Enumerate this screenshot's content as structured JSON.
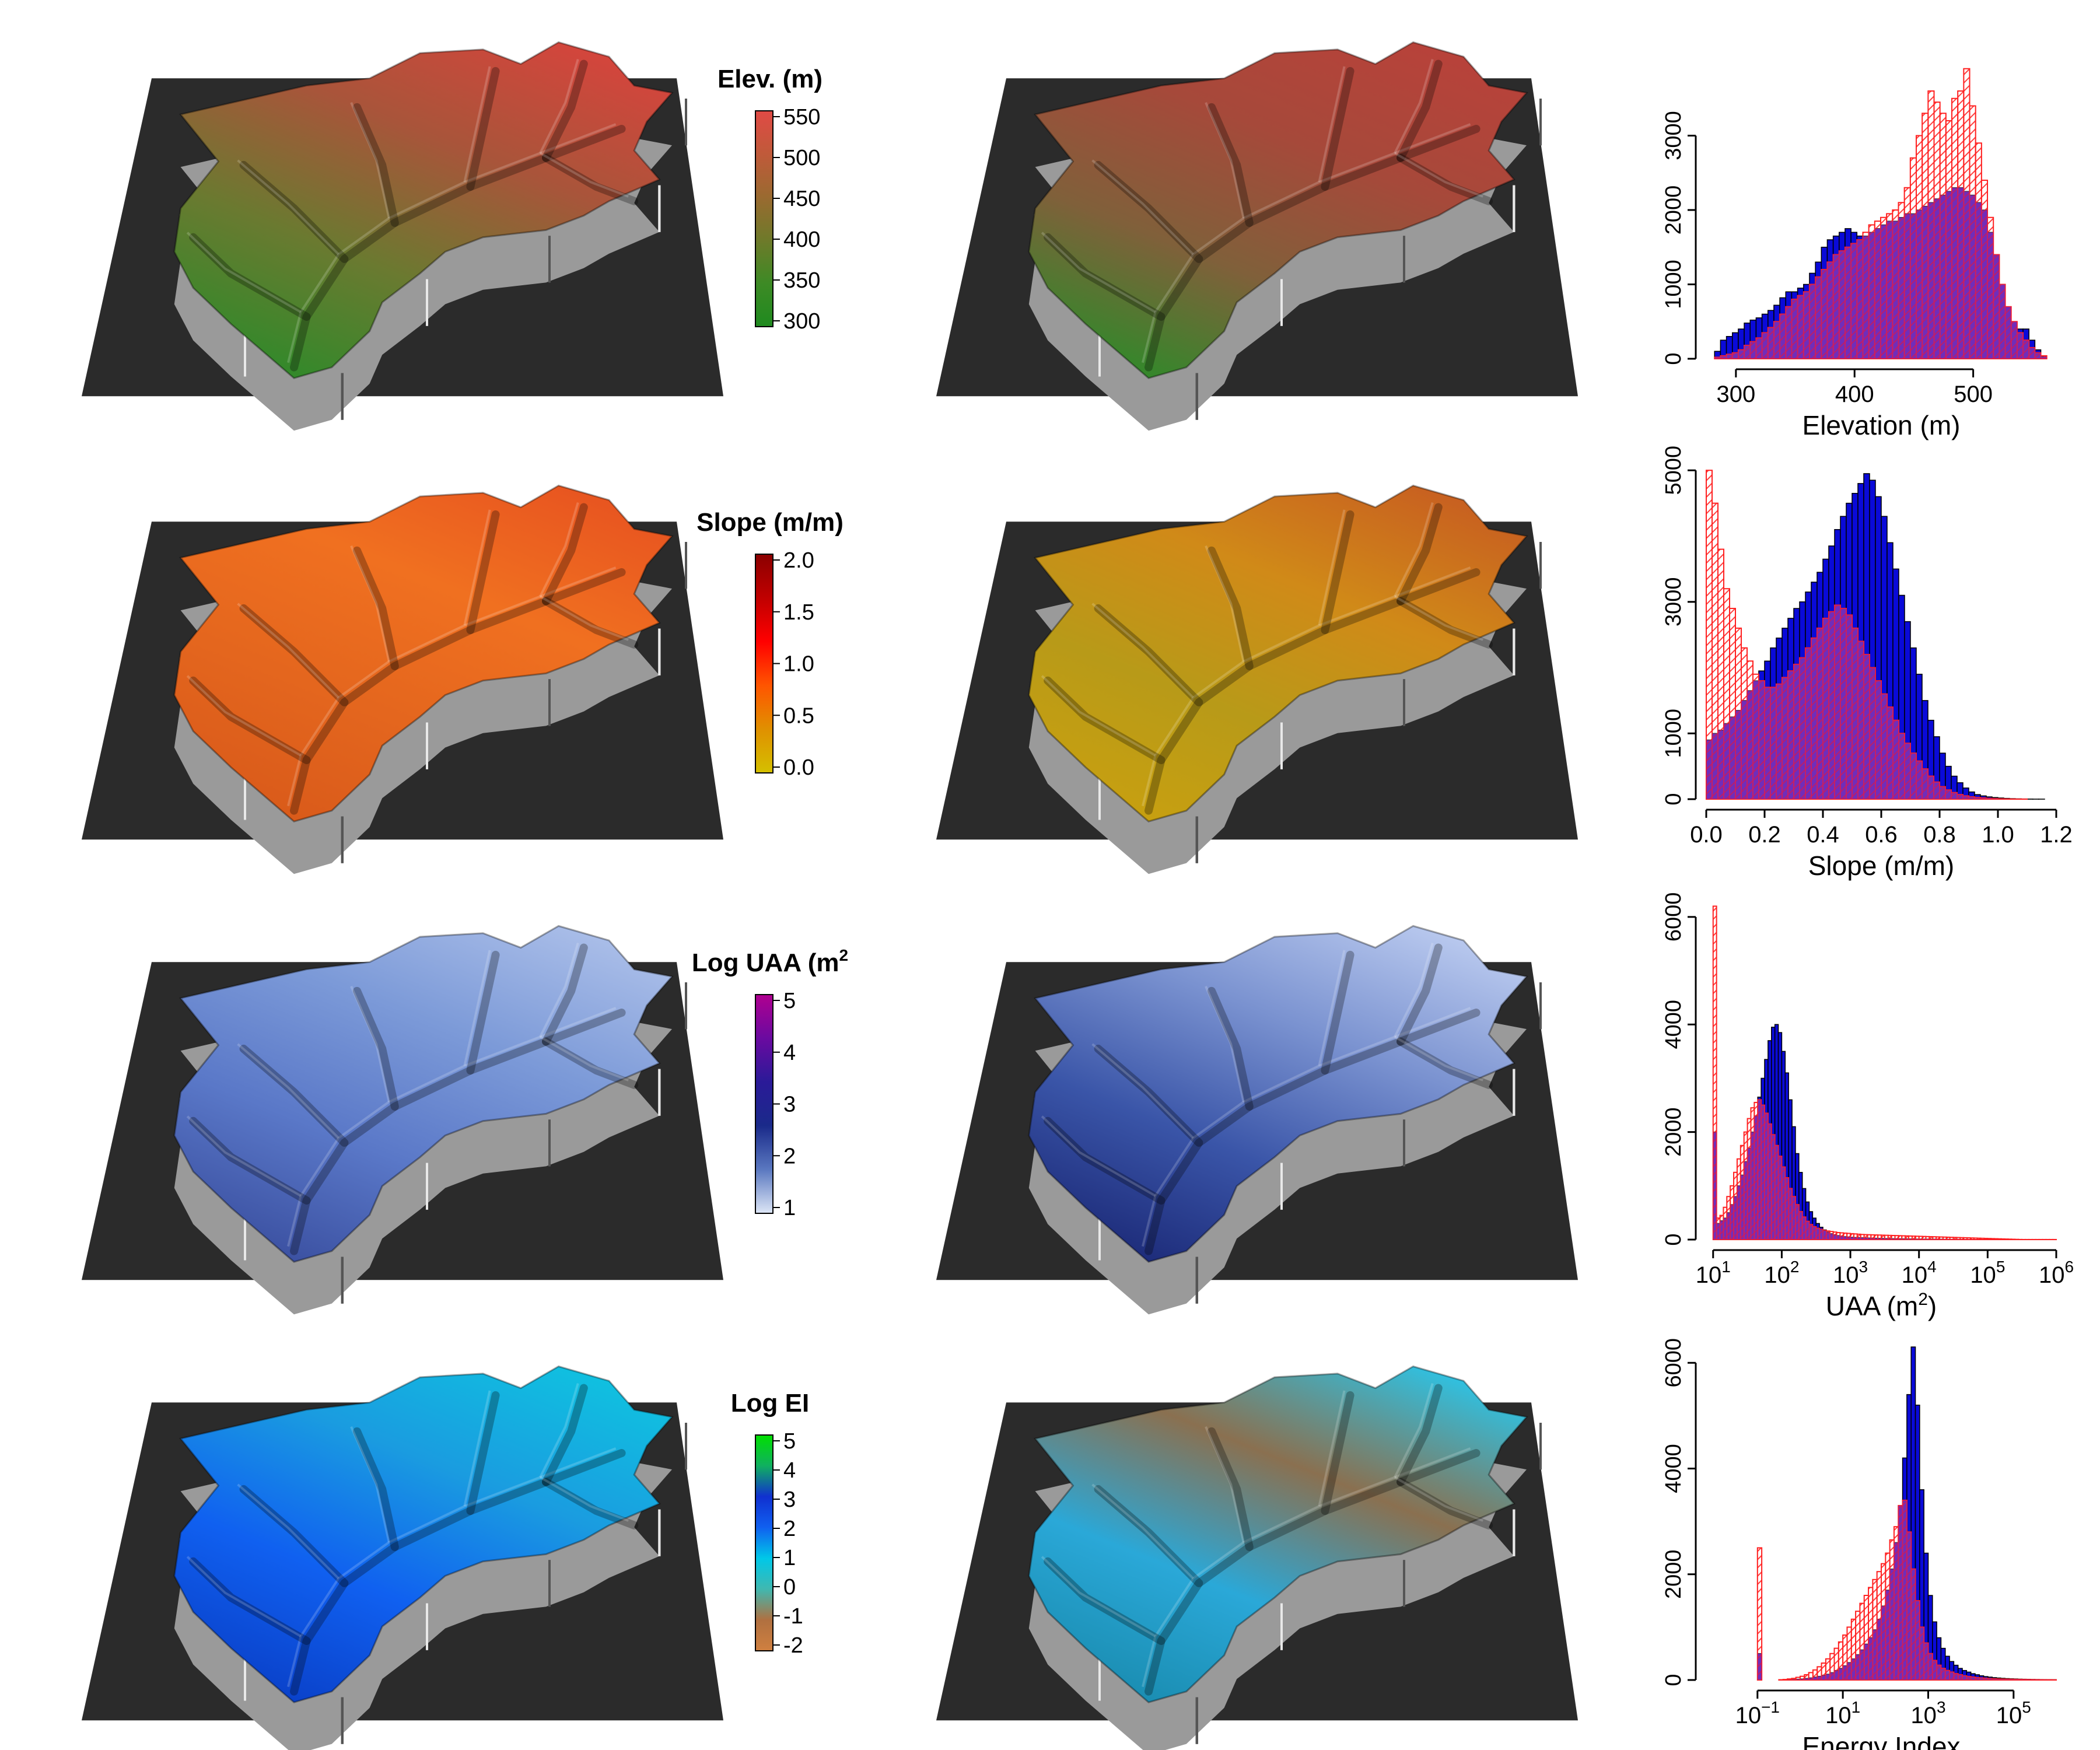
{
  "colors": {
    "base_plate": "#2b2b2b",
    "observed_bar": "#0a0ad8",
    "simulated_bar": "#ff2020",
    "overlap_bar": "#9a1f9a"
  },
  "rows": [
    {
      "id": "elevation",
      "colorbar": {
        "title": "Elev. (m)",
        "title_sup": "",
        "ticks": [
          "550",
          "500",
          "450",
          "400",
          "350",
          "300"
        ],
        "gradient": [
          "#e04a45",
          "#c05a3a",
          "#9a6a30",
          "#6e7a2a",
          "#3d8a25",
          "#1f8a1f"
        ]
      }
    },
    {
      "id": "slope",
      "colorbar": {
        "title": "Slope (m/m)",
        "title_sup": "",
        "ticks": [
          "2.0",
          "1.5",
          "1.0",
          "0.5",
          "0.0"
        ],
        "gradient": [
          "#8b0000",
          "#c00000",
          "#ff0000",
          "#ff5500",
          "#e09000",
          "#d4c000"
        ]
      }
    },
    {
      "id": "uaa",
      "colorbar": {
        "title": "Log UAA (m",
        "title_sup": "2",
        "ticks": [
          "5",
          "4",
          "3",
          "2",
          "1"
        ],
        "gradient": [
          "#b00090",
          "#6a0aa0",
          "#2a1a98",
          "#1a2a8a",
          "#5a78c0",
          "#dde6f6"
        ]
      }
    },
    {
      "id": "energy",
      "colorbar": {
        "title": "Log EI",
        "title_sup": "",
        "ticks": [
          "5",
          "4",
          "3",
          "2",
          "1",
          "0",
          "-1",
          "-2"
        ],
        "gradient": [
          "#00e000",
          "#10b060",
          "#1030d0",
          "#1060f0",
          "#00c8e8",
          "#40b8b0",
          "#b07040",
          "#d08040"
        ]
      }
    }
  ],
  "chart_data": [
    {
      "type": "bar",
      "xlabel": "Elevation (m)",
      "xlabel_sup": "",
      "xlim": [
        275,
        570
      ],
      "ylim": [
        0,
        4000
      ],
      "xticks": [
        {
          "v": 300,
          "label": "300"
        },
        {
          "v": 400,
          "label": "400"
        },
        {
          "v": 500,
          "label": "500"
        }
      ],
      "yticks": [
        {
          "v": 0,
          "label": "0"
        },
        {
          "v": 1000,
          "label": "1000"
        },
        {
          "v": 2000,
          "label": "2000"
        },
        {
          "v": 3000,
          "label": "3000"
        }
      ],
      "bin_start": 282,
      "bin_width": 5,
      "series": [
        {
          "values": [
            100,
            250,
            300,
            350,
            400,
            480,
            520,
            550,
            600,
            650,
            720,
            820,
            900,
            900,
            950,
            1000,
            1150,
            1300,
            1500,
            1600,
            1650,
            1700,
            1750,
            1700,
            1650,
            1650,
            1700,
            1750,
            1800,
            1850,
            1850,
            1900,
            1950,
            1950,
            2000,
            2050,
            2100,
            2150,
            2200,
            2250,
            2300,
            2300,
            2250,
            2200,
            2100,
            2000,
            1700,
            1400,
            1000,
            700,
            500,
            400,
            400,
            250,
            120,
            30
          ]
        },
        {
          "values": [
            20,
            40,
            60,
            80,
            120,
            180,
            230,
            280,
            350,
            420,
            500,
            600,
            700,
            800,
            850,
            900,
            1000,
            1100,
            1200,
            1300,
            1400,
            1450,
            1500,
            1550,
            1600,
            1700,
            1800,
            1850,
            1900,
            1950,
            2000,
            2100,
            2300,
            2700,
            3000,
            3300,
            3600,
            3450,
            3300,
            3200,
            3500,
            3600,
            3900,
            3400,
            2900,
            2400,
            1900,
            1400,
            1000,
            700,
            500,
            350,
            250,
            150,
            80,
            40
          ]
        }
      ]
    },
    {
      "type": "bar",
      "xlabel": "Slope (m/m)",
      "xlabel_sup": "",
      "xlim": [
        0,
        1.2
      ],
      "ylim": [
        0,
        5100
      ],
      "xticks": [
        {
          "v": 0,
          "label": "0.0"
        },
        {
          "v": 0.2,
          "label": "0.2"
        },
        {
          "v": 0.4,
          "label": "0.4"
        },
        {
          "v": 0.6,
          "label": "0.6"
        },
        {
          "v": 0.8,
          "label": "0.8"
        },
        {
          "v": 1.0,
          "label": "1.0"
        },
        {
          "v": 1.2,
          "label": "1.2"
        }
      ],
      "yticks": [
        {
          "v": 0,
          "label": "0"
        },
        {
          "v": 1000,
          "label": "1000"
        },
        {
          "v": 3000,
          "label": "3000"
        },
        {
          "v": 5000,
          "label": "5000"
        }
      ],
      "bin_start": 0,
      "bin_width": 0.02,
      "series": [
        {
          "values": [
            900,
            1000,
            1050,
            1150,
            1250,
            1350,
            1500,
            1650,
            1800,
            1950,
            2100,
            2300,
            2450,
            2600,
            2750,
            2900,
            3000,
            3150,
            3300,
            3450,
            3650,
            3850,
            4100,
            4300,
            4500,
            4650,
            4800,
            4950,
            4850,
            4600,
            4300,
            3900,
            3500,
            3100,
            2700,
            2300,
            1900,
            1500,
            1200,
            950,
            700,
            500,
            350,
            250,
            170,
            110,
            70,
            50,
            35,
            25,
            18,
            12,
            8,
            5,
            3,
            2,
            1,
            1,
            0,
            0
          ]
        },
        {
          "values": [
            5000,
            4500,
            3800,
            3200,
            2900,
            2600,
            2300,
            2100,
            1900,
            1800,
            1700,
            1700,
            1750,
            1850,
            1950,
            2050,
            2150,
            2300,
            2450,
            2600,
            2750,
            2850,
            2950,
            2900,
            2800,
            2600,
            2400,
            2200,
            2000,
            1800,
            1600,
            1400,
            1200,
            1000,
            850,
            700,
            580,
            460,
            350,
            260,
            190,
            140,
            100,
            70,
            50,
            35,
            25,
            18,
            12,
            8,
            5,
            3,
            2,
            1,
            1,
            0,
            0,
            0,
            0,
            0
          ]
        }
      ]
    },
    {
      "type": "bar",
      "xlabel": "UAA (m",
      "xlabel_sup": "2",
      "xlim": [
        0.9,
        6.0
      ],
      "ylim": [
        0,
        6400
      ],
      "log_x": true,
      "xticks": [
        {
          "v": 1,
          "label": "10",
          "sup": "1"
        },
        {
          "v": 2,
          "label": "10",
          "sup": "2"
        },
        {
          "v": 3,
          "label": "10",
          "sup": "3"
        },
        {
          "v": 4,
          "label": "10",
          "sup": "4"
        },
        {
          "v": 5,
          "label": "10",
          "sup": "5"
        },
        {
          "v": 6,
          "label": "10",
          "sup": "6"
        }
      ],
      "yticks": [
        {
          "v": 0,
          "label": "0"
        },
        {
          "v": 2000,
          "label": "2000"
        },
        {
          "v": 4000,
          "label": "4000"
        },
        {
          "v": 6000,
          "label": "6000"
        }
      ],
      "bin_start": 1.0,
      "bin_width": 0.05,
      "series": [
        {
          "values": [
            2000,
            300,
            350,
            400,
            500,
            650,
            800,
            1000,
            1200,
            1450,
            1700,
            2000,
            2300,
            2650,
            3000,
            3350,
            3700,
            3950,
            4000,
            3850,
            3500,
            3100,
            2600,
            2100,
            1600,
            1250,
            950,
            700,
            520,
            400,
            300,
            230,
            180,
            140,
            110,
            90,
            75,
            65,
            55,
            50,
            45,
            40,
            38,
            35,
            32,
            30,
            28,
            26,
            24,
            22,
            20,
            18,
            17,
            16,
            15,
            14,
            13,
            12,
            11,
            10,
            10,
            9,
            9,
            8,
            8,
            7,
            7,
            6,
            6,
            5,
            5,
            5,
            4,
            4,
            4,
            3,
            3,
            3,
            2,
            2,
            2,
            2,
            1,
            1,
            1,
            1,
            1,
            1,
            1,
            1,
            1,
            1,
            1,
            1,
            1,
            1,
            1,
            1,
            1,
            1
          ]
        },
        {
          "values": [
            6200,
            400,
            450,
            600,
            800,
            1000,
            1250,
            1500,
            1750,
            2000,
            2250,
            2450,
            2550,
            2600,
            2500,
            2350,
            2150,
            1950,
            1750,
            1550,
            1350,
            1150,
            950,
            800,
            650,
            520,
            420,
            340,
            280,
            240,
            210,
            190,
            170,
            160,
            150,
            140,
            130,
            125,
            120,
            115,
            110,
            105,
            100,
            95,
            92,
            90,
            88,
            86,
            84,
            82,
            80,
            78,
            76,
            74,
            72,
            70,
            68,
            66,
            64,
            62,
            60,
            58,
            56,
            54,
            52,
            50,
            48,
            46,
            44,
            42,
            40,
            38,
            36,
            34,
            32,
            30,
            28,
            26,
            24,
            22,
            20,
            18,
            16,
            14,
            12,
            10,
            8,
            6,
            4,
            2,
            1,
            1,
            1,
            1,
            1,
            1,
            1,
            1,
            1,
            1
          ]
        }
      ]
    },
    {
      "type": "bar",
      "xlabel": "Energy Index",
      "xlabel_sup": "",
      "xlim": [
        -2.2,
        6.0
      ],
      "ylim": [
        0,
        6400
      ],
      "log_x": true,
      "xticks": [
        {
          "v": -1,
          "label": "10",
          "sup": "−1"
        },
        {
          "v": 1,
          "label": "10",
          "sup": "1"
        },
        {
          "v": 3,
          "label": "10",
          "sup": "3"
        },
        {
          "v": 5,
          "label": "10",
          "sup": "5"
        }
      ],
      "yticks": [
        {
          "v": 0,
          "label": "0"
        },
        {
          "v": 2000,
          "label": "2000"
        },
        {
          "v": 4000,
          "label": "4000"
        },
        {
          "v": 6000,
          "label": "6000"
        }
      ],
      "bin_start": -2.0,
      "bin_width": 0.1,
      "series": [
        {
          "values": [
            0,
            0,
            0,
            0,
            0,
            0,
            0,
            0,
            0,
            0,
            500,
            0,
            0,
            0,
            0,
            0,
            0,
            5,
            10,
            15,
            20,
            30,
            40,
            55,
            70,
            90,
            110,
            140,
            180,
            220,
            270,
            330,
            400,
            480,
            570,
            680,
            800,
            950,
            1150,
            1400,
            1700,
            2100,
            2600,
            3300,
            4200,
            5400,
            6300,
            5200,
            3600,
            2400,
            1600,
            1100,
            800,
            600,
            450,
            350,
            280,
            220,
            180,
            150,
            120,
            100,
            80,
            65,
            55,
            45,
            38,
            32,
            27,
            23,
            20,
            17,
            15,
            13,
            11,
            10,
            9,
            8,
            7,
            6,
            5,
            4,
            4,
            3
          ]
        },
        {
          "values": [
            0,
            0,
            0,
            0,
            0,
            0,
            0,
            0,
            0,
            0,
            2500,
            0,
            0,
            0,
            0,
            5,
            10,
            20,
            30,
            50,
            70,
            100,
            140,
            190,
            250,
            320,
            400,
            500,
            600,
            720,
            850,
            1000,
            1150,
            1300,
            1450,
            1600,
            1750,
            1900,
            2050,
            2200,
            2400,
            2650,
            2900,
            3300,
            3400,
            2800,
            2100,
            1500,
            1000,
            700,
            500,
            370,
            280,
            220,
            180,
            150,
            120,
            100,
            80,
            65,
            55,
            45,
            38,
            32,
            27,
            23,
            20,
            17,
            15,
            13,
            11,
            10,
            9,
            8,
            7,
            6,
            5,
            4,
            4,
            3,
            2,
            2
          ]
        }
      ]
    }
  ]
}
